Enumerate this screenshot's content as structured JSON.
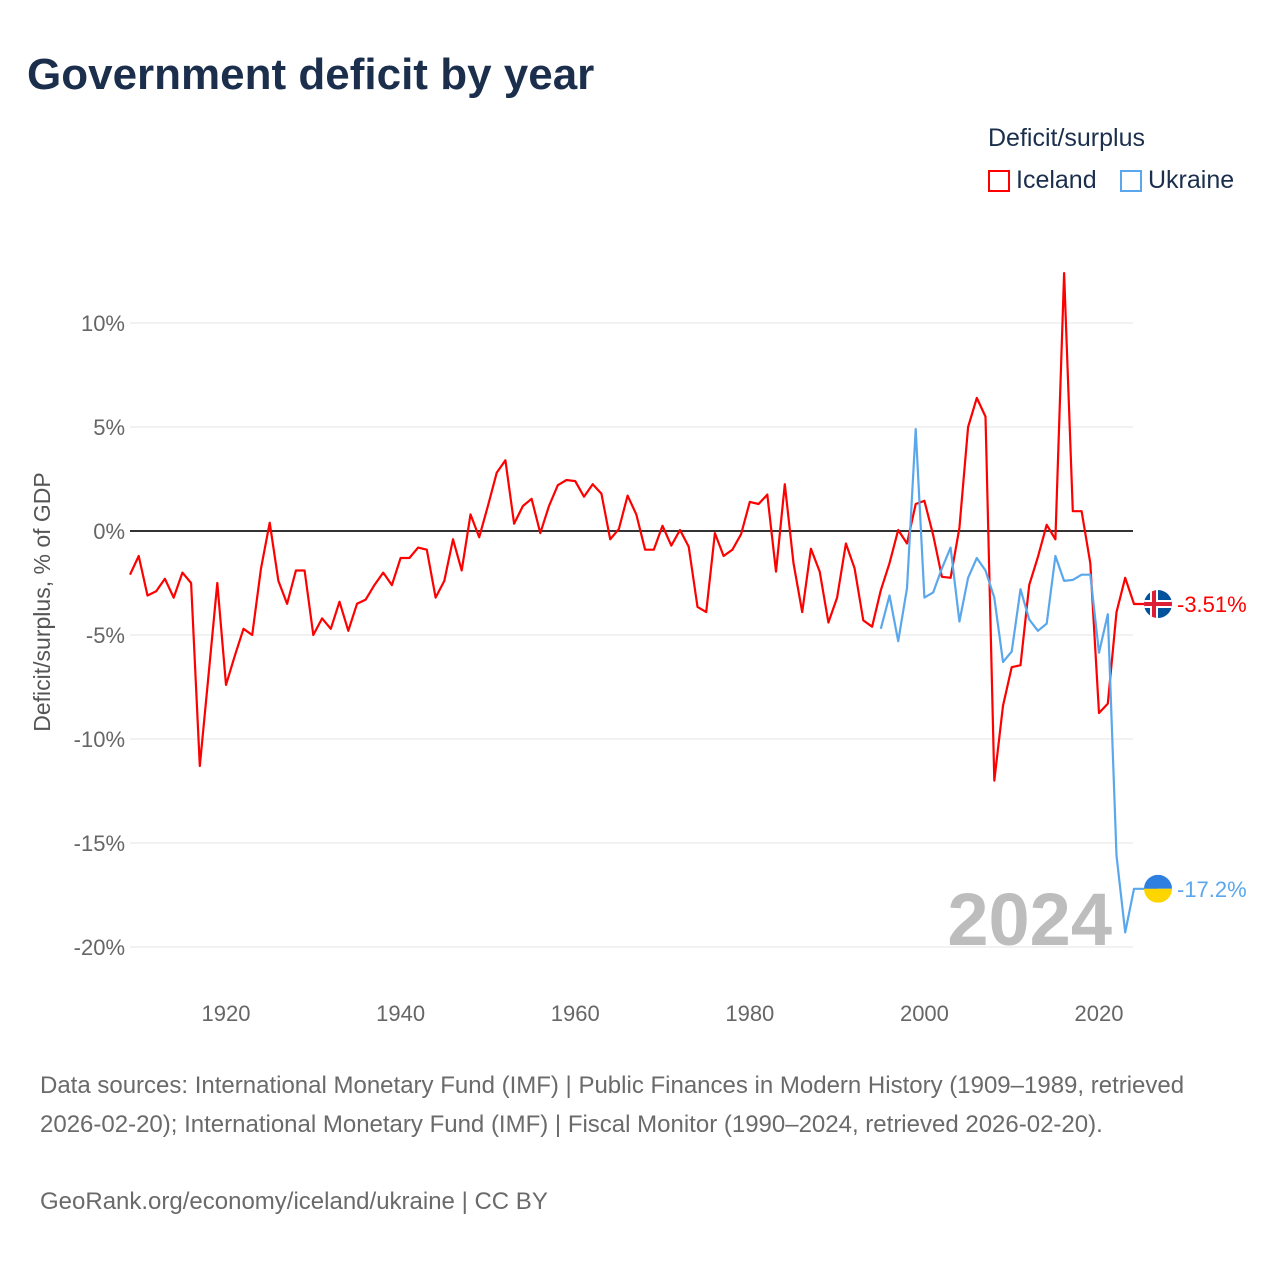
{
  "chart_data": {
    "type": "line",
    "title": "Government deficit by year",
    "ylabel": "Deficit/surplus, % of GDP",
    "xlabel": "",
    "ylim": [
      -21.5,
      13
    ],
    "xlim": [
      1909,
      2024
    ],
    "yticks": [
      10,
      5,
      0,
      -5,
      -10,
      -15,
      -20
    ],
    "ytick_labels": [
      "10%",
      "5%",
      "0%",
      "-5%",
      "-10%",
      "-15%",
      "-20%"
    ],
    "xticks": [
      1920,
      1940,
      1960,
      1980,
      2000,
      2020
    ],
    "xtick_labels": [
      "1920",
      "1940",
      "1960",
      "1980",
      "2000",
      "2020"
    ],
    "grid": true,
    "legend_title": "Deficit/surplus",
    "legend_placement": "top-right",
    "year_watermark": "2024",
    "series": [
      {
        "name": "Iceland",
        "color": "#ff0000",
        "end_label": "-3.51%",
        "start_year": 1909,
        "values": [
          -2.1,
          -1.2,
          -3.1,
          -2.9,
          -2.3,
          -3.2,
          -2.0,
          -2.5,
          -11.3,
          -6.9,
          -2.5,
          -7.4,
          -6.0,
          -4.7,
          -5.0,
          -1.8,
          0.4,
          -2.4,
          -3.5,
          -1.9,
          -1.9,
          -5.0,
          -4.2,
          -4.7,
          -3.4,
          -4.8,
          -3.5,
          -3.3,
          -2.6,
          -2.0,
          -2.6,
          -1.3,
          -1.3,
          -0.8,
          -0.9,
          -3.2,
          -2.4,
          -0.4,
          -1.9,
          0.8,
          -0.3,
          1.2,
          2.8,
          3.4,
          0.35,
          1.2,
          1.55,
          -0.1,
          1.2,
          2.2,
          2.45,
          2.4,
          1.65,
          2.25,
          1.8,
          -0.4,
          0.1,
          1.7,
          0.8,
          -0.9,
          -0.9,
          0.25,
          -0.7,
          0.05,
          -0.75,
          -3.65,
          -3.9,
          -0.1,
          -1.2,
          -0.9,
          -0.15,
          1.4,
          1.3,
          1.75,
          -1.95,
          2.25,
          -1.55,
          -3.9,
          -0.85,
          -1.95,
          -4.4,
          -3.2,
          -0.6,
          -1.8,
          -4.3,
          -4.6,
          -2.85,
          -1.55,
          0.05,
          -0.6,
          1.3,
          1.45,
          -0.2,
          -2.2,
          -2.25,
          0.15,
          5.0,
          6.4,
          5.5,
          -12.0,
          -8.4,
          -6.55,
          -6.45,
          -2.6,
          -1.25,
          0.3,
          -0.4,
          12.4,
          0.95,
          0.95,
          -1.55,
          -8.75,
          -8.3,
          -3.9,
          -2.25,
          -3.51
        ]
      },
      {
        "name": "Ukraine",
        "color": "#5ba7ec",
        "end_label": "-17.2%",
        "start_year": 1995,
        "values": [
          -4.7,
          -3.1,
          -5.3,
          -2.75,
          4.9,
          -3.2,
          -2.95,
          -1.8,
          -0.8,
          -4.35,
          -2.25,
          -1.3,
          -1.9,
          -3.2,
          -6.3,
          -5.8,
          -2.8,
          -4.25,
          -4.8,
          -4.45,
          -1.2,
          -2.4,
          -2.35,
          -2.1,
          -2.1,
          -5.85,
          -4.0,
          -15.6,
          -19.3,
          -17.2
        ]
      }
    ]
  },
  "footer": {
    "sources": "Data sources: International Monetary Fund (IMF) | Public Finances in Modern History (1909–1989, retrieved 2026-02-20); International Monetary Fund (IMF) | Fiscal Monitor (1990–2024, retrieved 2026-02-20).",
    "credit": "GeoRank.org/economy/iceland/ukraine | CC BY"
  }
}
